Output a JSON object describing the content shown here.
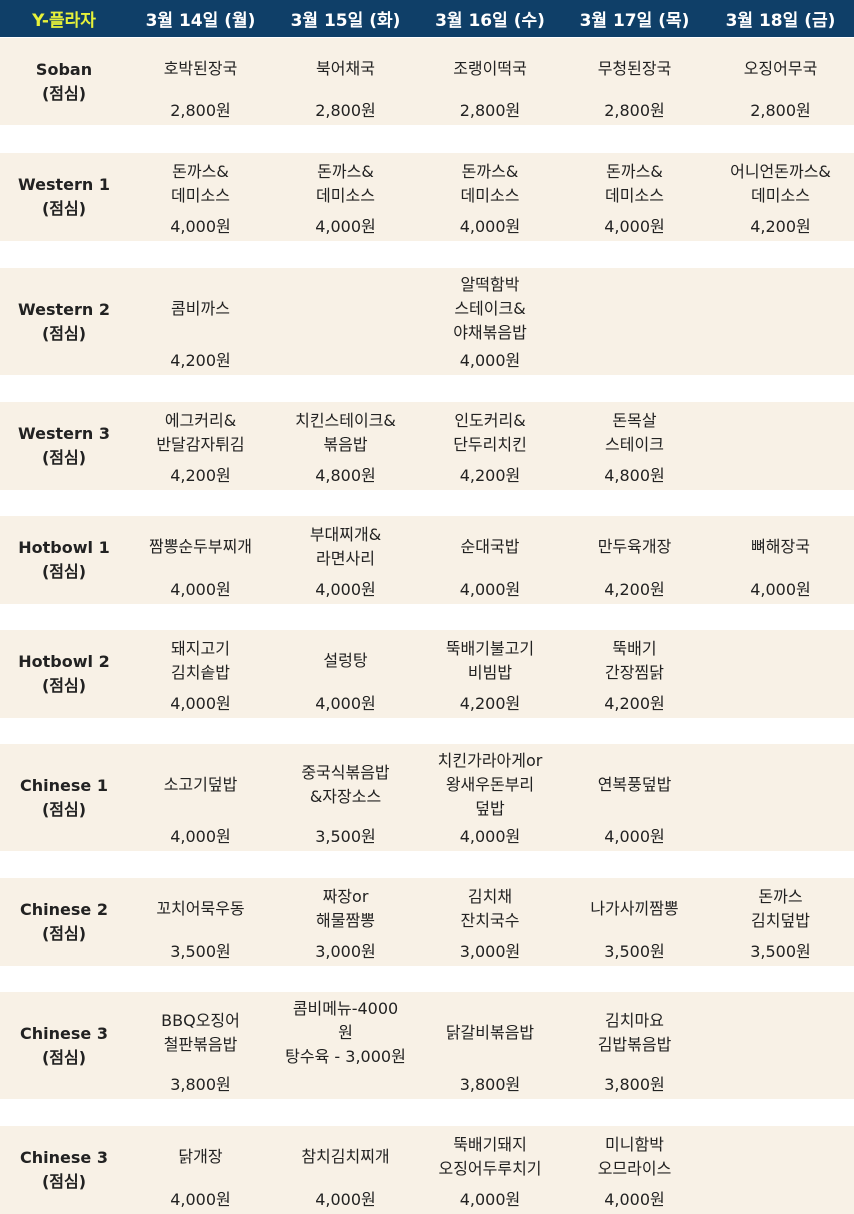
{
  "header": {
    "brand": "Y-플라자",
    "days": [
      "3월 14일 (월)",
      "3월 15일 (화)",
      "3월 16일 (수)",
      "3월 17일 (목)",
      "3월 18일 (금)"
    ]
  },
  "rows": [
    {
      "name": "Soban",
      "meal": "(점심)",
      "items": [
        {
          "dish": "호박된장국",
          "price": "2,800원"
        },
        {
          "dish": "북어채국",
          "price": "2,800원"
        },
        {
          "dish": "조랭이떡국",
          "price": "2,800원"
        },
        {
          "dish": "무청된장국",
          "price": "2,800원"
        },
        {
          "dish": "오징어무국",
          "price": "2,800원"
        }
      ]
    },
    {
      "name": "Western 1",
      "meal": "(점심)",
      "items": [
        {
          "dish": "돈까스&\n데미소스",
          "price": "4,000원"
        },
        {
          "dish": "돈까스&\n데미소스",
          "price": "4,000원"
        },
        {
          "dish": "돈까스&\n데미소스",
          "price": "4,000원"
        },
        {
          "dish": "돈까스&\n데미소스",
          "price": "4,000원"
        },
        {
          "dish": "어니언돈까스&\n데미소스",
          "price": "4,200원"
        }
      ]
    },
    {
      "name": "Western 2",
      "meal": "(점심)",
      "items": [
        {
          "dish": "콤비까스",
          "price": "4,200원"
        },
        {
          "dish": "",
          "price": ""
        },
        {
          "dish": "알떡함박\n스테이크&\n야채볶음밥",
          "price": "4,000원"
        },
        {
          "dish": "",
          "price": ""
        },
        {
          "dish": "",
          "price": ""
        }
      ]
    },
    {
      "name": "Western 3",
      "meal": "(점심)",
      "items": [
        {
          "dish": "에그커리&\n반달감자튀김",
          "price": "4,200원"
        },
        {
          "dish": "치킨스테이크&\n볶음밥",
          "price": "4,800원"
        },
        {
          "dish": "인도커리&\n단두리치킨",
          "price": "4,200원"
        },
        {
          "dish": "돈목살\n스테이크",
          "price": "4,800원"
        },
        {
          "dish": "",
          "price": ""
        }
      ]
    },
    {
      "name": "Hotbowl 1",
      "meal": "(점심)",
      "items": [
        {
          "dish": "짬뽕순두부찌개",
          "price": "4,000원"
        },
        {
          "dish": "부대찌개&\n라면사리",
          "price": "4,000원"
        },
        {
          "dish": "순대국밥",
          "price": "4,000원"
        },
        {
          "dish": "만두육개장",
          "price": "4,200원"
        },
        {
          "dish": "뼈해장국",
          "price": "4,000원"
        }
      ]
    },
    {
      "name": "Hotbowl 2",
      "meal": "(점심)",
      "items": [
        {
          "dish": "돼지고기\n김치솥밥",
          "price": "4,000원"
        },
        {
          "dish": "설렁탕",
          "price": "4,000원"
        },
        {
          "dish": "뚝배기불고기\n비빔밥",
          "price": "4,200원"
        },
        {
          "dish": "뚝배기\n간장찜닭",
          "price": "4,200원"
        },
        {
          "dish": "",
          "price": ""
        }
      ]
    },
    {
      "name": "Chinese 1",
      "meal": "(점심)",
      "items": [
        {
          "dish": "소고기덮밥",
          "price": "4,000원"
        },
        {
          "dish": "중국식볶음밥\n&자장소스",
          "price": "3,500원"
        },
        {
          "dish": "치킨가라아게or\n왕새우돈부리\n덮밥",
          "price": "4,000원"
        },
        {
          "dish": "연복풍덮밥",
          "price": "4,000원"
        },
        {
          "dish": "",
          "price": ""
        }
      ]
    },
    {
      "name": "Chinese 2",
      "meal": "(점심)",
      "items": [
        {
          "dish": "꼬치어묵우동",
          "price": "3,500원"
        },
        {
          "dish": "짜장or\n해물짬뽕",
          "price": "3,000원"
        },
        {
          "dish": "김치채\n잔치국수",
          "price": "3,000원"
        },
        {
          "dish": "나가사끼짬뽕",
          "price": "3,500원"
        },
        {
          "dish": "돈까스\n김치덮밥",
          "price": "3,500원"
        }
      ]
    },
    {
      "name": "Chinese 3",
      "meal": "(점심)",
      "items": [
        {
          "dish": "BBQ오징어\n철판볶음밥",
          "price": "3,800원"
        },
        {
          "dish": "콤비메뉴-4000\n원\n탕수육 - 3,000원",
          "price": ""
        },
        {
          "dish": "닭갈비볶음밥",
          "price": "3,800원"
        },
        {
          "dish": "김치마요\n김밥볶음밥",
          "price": "3,800원"
        },
        {
          "dish": "",
          "price": ""
        }
      ]
    },
    {
      "name": "Chinese 3",
      "meal": "(점심)",
      "items": [
        {
          "dish": "닭개장",
          "price": "4,000원"
        },
        {
          "dish": "참치김치찌개",
          "price": "4,000원"
        },
        {
          "dish": "뚝배기돼지\n오징어두루치기",
          "price": "4,000원"
        },
        {
          "dish": "미니함박\n오므라이스",
          "price": "4,000원"
        },
        {
          "dish": "",
          "price": ""
        }
      ]
    }
  ]
}
